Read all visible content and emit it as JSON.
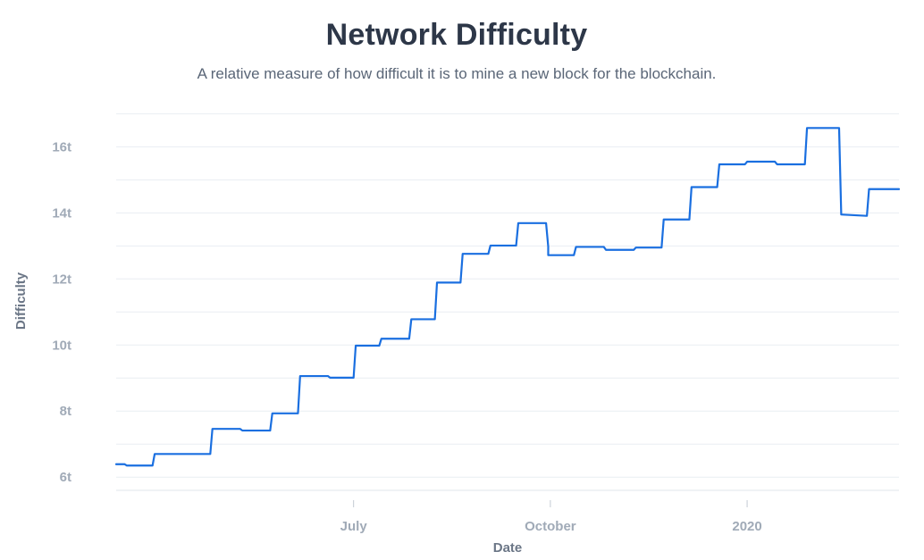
{
  "chart_data": {
    "type": "line",
    "title": "Network Difficulty",
    "subtitle": "A relative measure of how difficult it is to mine a new block for the blockchain.",
    "xlabel": "Date",
    "ylabel": "Difficulty",
    "xlim": [
      "2019-03-12",
      "2020-03-12"
    ],
    "ylim": [
      5.6,
      17.2
    ],
    "y_ticks": [
      {
        "value": 6,
        "label": "6t"
      },
      {
        "value": 8,
        "label": "8t"
      },
      {
        "value": 10,
        "label": "10t"
      },
      {
        "value": 12,
        "label": "12t"
      },
      {
        "value": 14,
        "label": "14t"
      },
      {
        "value": 16,
        "label": "16t"
      }
    ],
    "x_ticks": [
      {
        "value": "2019-07-01",
        "label": "July"
      },
      {
        "value": "2019-10-01",
        "label": "October"
      },
      {
        "value": "2020-01-01",
        "label": "2020"
      }
    ],
    "grid": true,
    "line_color": "#1a6fe0",
    "series": [
      {
        "points": [
          [
            "2019-03-12",
            6.39
          ],
          [
            "2019-03-16",
            6.39
          ],
          [
            "2019-03-17",
            6.35
          ],
          [
            "2019-03-29",
            6.35
          ],
          [
            "2019-03-30",
            6.7
          ],
          [
            "2019-04-25",
            6.7
          ],
          [
            "2019-04-26",
            7.46
          ],
          [
            "2019-05-09",
            7.46
          ],
          [
            "2019-05-10",
            7.41
          ],
          [
            "2019-05-23",
            7.41
          ],
          [
            "2019-05-24",
            7.93
          ],
          [
            "2019-06-05",
            7.93
          ],
          [
            "2019-06-06",
            9.06
          ],
          [
            "2019-06-19",
            9.06
          ],
          [
            "2019-06-20",
            9.01
          ],
          [
            "2019-07-01",
            9.01
          ],
          [
            "2019-07-02",
            9.98
          ],
          [
            "2019-07-13",
            9.98
          ],
          [
            "2019-07-14",
            10.19
          ],
          [
            "2019-07-27",
            10.19
          ],
          [
            "2019-07-28",
            10.78
          ],
          [
            "2019-08-08",
            10.78
          ],
          [
            "2019-08-09",
            11.89
          ],
          [
            "2019-08-20",
            11.89
          ],
          [
            "2019-08-21",
            12.76
          ],
          [
            "2019-09-02",
            12.76
          ],
          [
            "2019-09-03",
            13.01
          ],
          [
            "2019-09-15",
            13.01
          ],
          [
            "2019-09-16",
            13.69
          ],
          [
            "2019-09-29",
            13.69
          ],
          [
            "2019-09-30",
            12.98
          ],
          [
            "2019-09-30",
            12.72
          ],
          [
            "2019-10-12",
            12.72
          ],
          [
            "2019-10-13",
            12.97
          ],
          [
            "2019-10-26",
            12.97
          ],
          [
            "2019-10-27",
            12.88
          ],
          [
            "2019-11-09",
            12.88
          ],
          [
            "2019-11-10",
            12.95
          ],
          [
            "2019-11-22",
            12.95
          ],
          [
            "2019-11-23",
            13.8
          ],
          [
            "2019-12-05",
            13.8
          ],
          [
            "2019-12-06",
            14.78
          ],
          [
            "2019-12-18",
            14.78
          ],
          [
            "2019-12-19",
            15.47
          ],
          [
            "2019-12-31",
            15.47
          ],
          [
            "2020-01-01",
            15.55
          ],
          [
            "2020-01-14",
            15.55
          ],
          [
            "2020-01-15",
            15.47
          ],
          [
            "2020-01-28",
            15.47
          ],
          [
            "2020-01-29",
            16.57
          ],
          [
            "2020-02-13",
            16.57
          ],
          [
            "2020-02-14",
            13.95
          ],
          [
            "2020-02-26",
            13.91
          ],
          [
            "2020-02-27",
            14.72
          ],
          [
            "2020-03-12",
            14.72
          ]
        ]
      }
    ]
  }
}
